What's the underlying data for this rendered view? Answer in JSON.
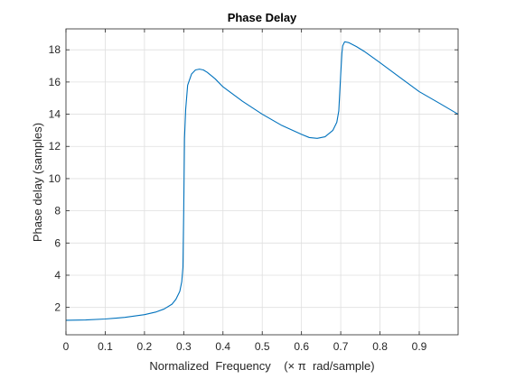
{
  "chart_data": {
    "type": "line",
    "title": "Phase Delay",
    "xlabel": "Normalized  Frequency    (× π  rad/sample)",
    "ylabel": "Phase delay (samples)",
    "xlim": [
      0,
      0.999
    ],
    "ylim": [
      0.3,
      19.3
    ],
    "xticks": [
      0,
      0.1,
      0.2,
      0.3,
      0.4,
      0.5,
      0.6,
      0.7,
      0.8,
      0.9
    ],
    "xtick_labels": [
      "0",
      "0.1",
      "0.2",
      "0.3",
      "0.4",
      "0.5",
      "0.6",
      "0.7",
      "0.8",
      "0.9"
    ],
    "yticks": [
      2,
      4,
      6,
      8,
      10,
      12,
      14,
      16,
      18
    ],
    "ytick_labels": [
      "2",
      "4",
      "6",
      "8",
      "10",
      "12",
      "14",
      "16",
      "18"
    ],
    "grid": true,
    "color": "#0072BD",
    "series": [
      {
        "x": [
          0,
          0.05,
          0.1,
          0.15,
          0.2,
          0.23,
          0.25,
          0.27,
          0.28,
          0.29,
          0.295,
          0.298,
          0.3,
          0.302,
          0.305,
          0.31,
          0.32,
          0.33,
          0.34,
          0.35,
          0.36,
          0.38,
          0.4,
          0.45,
          0.5,
          0.55,
          0.6,
          0.62,
          0.64,
          0.66,
          0.68,
          0.69,
          0.695,
          0.7,
          0.703,
          0.705,
          0.71,
          0.72,
          0.74,
          0.76,
          0.8,
          0.85,
          0.9,
          0.95,
          0.999
        ],
        "y": [
          1.2,
          1.22,
          1.28,
          1.38,
          1.55,
          1.72,
          1.9,
          2.2,
          2.5,
          3.0,
          3.6,
          4.5,
          8.0,
          12.5,
          14.3,
          15.8,
          16.5,
          16.75,
          16.8,
          16.75,
          16.6,
          16.2,
          15.7,
          14.8,
          14.0,
          13.3,
          12.75,
          12.55,
          12.5,
          12.6,
          13.0,
          13.5,
          14.2,
          16.5,
          17.8,
          18.25,
          18.5,
          18.45,
          18.2,
          17.9,
          17.2,
          16.3,
          15.4,
          14.7,
          14.0
        ]
      }
    ]
  }
}
